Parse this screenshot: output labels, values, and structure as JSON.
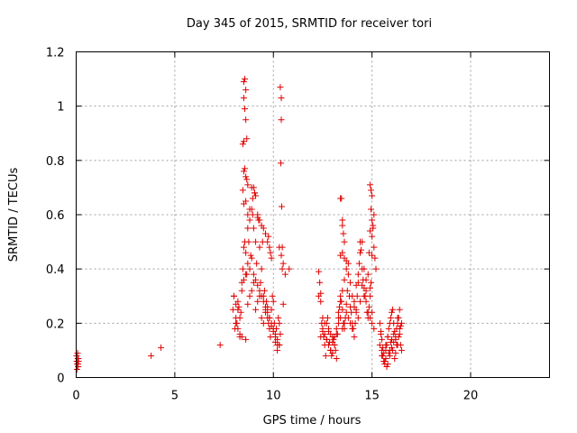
{
  "chart_data": {
    "type": "scatter",
    "title": "Day 345 of 2015, SRMTID for receiver tori",
    "xlabel": "GPS time / hours",
    "ylabel": "SRMTID / TECUs",
    "xlim": [
      0,
      24
    ],
    "ylim": [
      0,
      1.2
    ],
    "xticks": [
      0,
      5,
      10,
      15,
      20
    ],
    "xtick_labels": [
      "0",
      "5",
      "10",
      "15",
      "20"
    ],
    "yticks": [
      0,
      0.2,
      0.4,
      0.6,
      0.8,
      1,
      1.2
    ],
    "ytick_labels": [
      "0",
      "0.2",
      "0.4",
      "0.6",
      "0.8",
      "1",
      "1.2"
    ],
    "grid": true,
    "marker": "+",
    "color": "#e00000",
    "series": [
      {
        "name": "SRMTID",
        "x": [
          0.02,
          0.05,
          0.08,
          0.1,
          0.12,
          0.04,
          0.07,
          0.11,
          0.03,
          0.09,
          3.8,
          4.3,
          7.3,
          7.95,
          8.0,
          8.05,
          8.1,
          8.15,
          8.2,
          8.25,
          8.3,
          8.35,
          8.4,
          8.45,
          8.5,
          8.55,
          8.6,
          8.65,
          8.7,
          8.75,
          8.8,
          8.85,
          8.9,
          8.95,
          9.0,
          9.05,
          9.1,
          9.15,
          9.2,
          9.25,
          9.3,
          9.35,
          9.4,
          9.45,
          9.5,
          9.55,
          9.6,
          9.65,
          9.7,
          9.75,
          9.8,
          9.85,
          9.9,
          9.95,
          10.0,
          10.05,
          10.1,
          10.15,
          10.2,
          10.25,
          10.3,
          10.35,
          10.4,
          10.45,
          10.5,
          10.6,
          10.8,
          8.5,
          8.55,
          8.6,
          8.5,
          8.55,
          8.6,
          8.65,
          8.45,
          8.5,
          8.55,
          8.5,
          8.6,
          8.65,
          8.7,
          8.45,
          8.6,
          8.5,
          8.7,
          8.8,
          8.9,
          9.0,
          8.95,
          9.05,
          9.1,
          9.2,
          9.3,
          9.4,
          9.5,
          9.6,
          9.7,
          9.75,
          9.8,
          9.85,
          9.9,
          8.1,
          8.2,
          8.3,
          8.4,
          8.6,
          8.7,
          8.8,
          8.9,
          9.0,
          9.1,
          9.2,
          9.3,
          9.4,
          9.5,
          9.6,
          9.7,
          9.8,
          9.9,
          10.0,
          10.1,
          10.2,
          10.3,
          8.0,
          8.1,
          8.2,
          8.3,
          8.4,
          8.5,
          8.6,
          8.7,
          8.8,
          8.9,
          9.0,
          9.1,
          9.2,
          9.3,
          9.4,
          9.5,
          9.6,
          9.7,
          9.8,
          9.9,
          10.0,
          10.1,
          10.2,
          10.3,
          10.35,
          10.4,
          10.4,
          10.38,
          10.42,
          10.3,
          10.45,
          10.5,
          12.3,
          12.35,
          12.4,
          12.45,
          12.5,
          12.55,
          12.6,
          12.65,
          12.7,
          12.75,
          12.8,
          12.85,
          12.9,
          12.95,
          13.0,
          13.05,
          13.1,
          13.15,
          13.2,
          13.25,
          13.3,
          13.35,
          13.4,
          13.45,
          13.5,
          13.55,
          13.6,
          13.65,
          13.7,
          13.75,
          13.8,
          13.85,
          13.9,
          13.95,
          14.0,
          14.05,
          14.1,
          14.15,
          14.2,
          14.25,
          14.3,
          14.35,
          14.4,
          14.45,
          14.5,
          14.55,
          14.6,
          14.65,
          14.7,
          14.75,
          14.8,
          14.85,
          14.9,
          14.95,
          15.0,
          15.05,
          15.1,
          15.15,
          15.2,
          12.3,
          12.4,
          12.5,
          12.6,
          12.7,
          12.8,
          12.9,
          13.0,
          13.1,
          13.2,
          13.3,
          13.4,
          13.5,
          13.6,
          13.7,
          13.8,
          13.9,
          14.0,
          14.1,
          14.2,
          14.3,
          14.4,
          14.5,
          14.6,
          14.7,
          14.8,
          14.9,
          15.0,
          15.1,
          12.4,
          12.5,
          12.6,
          12.7,
          12.8,
          12.9,
          13.0,
          13.1,
          13.2,
          13.3,
          13.4,
          13.5,
          13.6,
          13.7,
          13.8,
          13.9,
          14.0,
          14.1,
          14.2,
          14.3,
          14.4,
          14.5,
          14.6,
          14.7,
          14.8,
          14.9,
          15.0,
          13.4,
          13.45,
          13.5,
          13.5,
          13.55,
          13.6,
          13.4,
          13.5,
          13.6,
          13.7,
          14.9,
          14.95,
          15.0,
          14.95,
          15.0,
          15.05,
          14.9,
          15.0,
          15.1,
          14.85,
          15.4,
          15.45,
          15.5,
          15.55,
          15.6,
          15.65,
          15.7,
          15.75,
          15.8,
          15.85,
          15.9,
          15.95,
          16.0,
          16.05,
          16.1,
          16.15,
          16.2,
          16.25,
          16.3,
          16.35,
          16.4,
          16.45,
          16.5,
          15.4,
          15.5,
          15.6,
          15.7,
          15.8,
          15.9,
          16.0,
          16.1,
          16.2,
          16.3,
          16.4,
          16.5,
          15.45,
          15.55,
          15.65,
          15.75,
          15.85,
          15.95,
          16.05,
          16.15,
          16.25,
          16.35,
          16.45,
          15.5,
          15.6,
          15.7,
          15.8,
          15.9,
          16.0,
          16.1,
          16.2,
          16.3,
          16.4
        ],
        "y": [
          0.08,
          0.05,
          0.07,
          0.04,
          0.06,
          0.03,
          0.09,
          0.07,
          0.06,
          0.05,
          0.08,
          0.11,
          0.12,
          0.25,
          0.3,
          0.18,
          0.22,
          0.2,
          0.28,
          0.26,
          0.15,
          0.24,
          0.35,
          0.4,
          0.48,
          0.5,
          0.46,
          0.38,
          0.55,
          0.5,
          0.62,
          0.45,
          0.7,
          0.6,
          0.55,
          0.68,
          0.5,
          0.42,
          0.6,
          0.58,
          0.48,
          0.35,
          0.4,
          0.5,
          0.3,
          0.32,
          0.25,
          0.28,
          0.22,
          0.2,
          0.18,
          0.15,
          0.25,
          0.3,
          0.28,
          0.2,
          0.15,
          0.18,
          0.12,
          0.22,
          0.2,
          0.16,
          0.45,
          0.48,
          0.42,
          0.38,
          0.4,
          1.09,
          1.1,
          1.06,
          1.03,
          0.99,
          0.95,
          0.88,
          0.86,
          0.87,
          0.77,
          0.76,
          0.74,
          0.73,
          0.71,
          0.69,
          0.65,
          0.64,
          0.6,
          0.58,
          0.62,
          0.7,
          0.66,
          0.68,
          0.67,
          0.59,
          0.58,
          0.56,
          0.55,
          0.53,
          0.5,
          0.52,
          0.48,
          0.46,
          0.44,
          0.2,
          0.18,
          0.16,
          0.15,
          0.14,
          0.27,
          0.3,
          0.32,
          0.35,
          0.25,
          0.28,
          0.3,
          0.22,
          0.2,
          0.24,
          0.26,
          0.22,
          0.19,
          0.17,
          0.13,
          0.1,
          0.12,
          0.3,
          0.27,
          0.25,
          0.22,
          0.32,
          0.36,
          0.38,
          0.42,
          0.4,
          0.44,
          0.38,
          0.36,
          0.34,
          0.32,
          0.3,
          0.28,
          0.26,
          0.24,
          0.22,
          0.2,
          0.18,
          0.16,
          0.14,
          0.12,
          1.07,
          1.03,
          0.95,
          0.79,
          0.63,
          0.48,
          0.4,
          0.27,
          0.39,
          0.35,
          0.31,
          0.2,
          0.18,
          0.15,
          0.12,
          0.08,
          0.2,
          0.22,
          0.17,
          0.13,
          0.1,
          0.08,
          0.15,
          0.14,
          0.12,
          0.1,
          0.07,
          0.16,
          0.22,
          0.26,
          0.3,
          0.28,
          0.25,
          0.2,
          0.18,
          0.22,
          0.27,
          0.32,
          0.38,
          0.3,
          0.26,
          0.24,
          0.2,
          0.18,
          0.15,
          0.2,
          0.25,
          0.3,
          0.35,
          0.42,
          0.5,
          0.47,
          0.4,
          0.36,
          0.33,
          0.3,
          0.28,
          0.24,
          0.22,
          0.26,
          0.3,
          0.35,
          0.45,
          0.55,
          0.6,
          0.44,
          0.4,
          0.3,
          0.28,
          0.22,
          0.16,
          0.14,
          0.12,
          0.1,
          0.09,
          0.12,
          0.18,
          0.24,
          0.28,
          0.32,
          0.36,
          0.4,
          0.42,
          0.35,
          0.3,
          0.28,
          0.34,
          0.38,
          0.46,
          0.5,
          0.4,
          0.32,
          0.24,
          0.22,
          0.2,
          0.18,
          0.15,
          0.17,
          0.2,
          0.14,
          0.18,
          0.16,
          0.13,
          0.15,
          0.16,
          0.2,
          0.22,
          0.18,
          0.2,
          0.24,
          0.22,
          0.2,
          0.18,
          0.26,
          0.24,
          0.22,
          0.28,
          0.34,
          0.3,
          0.36,
          0.38,
          0.33,
          0.24,
          0.66,
          0.66,
          0.58,
          0.56,
          0.53,
          0.5,
          0.45,
          0.46,
          0.44,
          0.43,
          0.71,
          0.69,
          0.67,
          0.62,
          0.58,
          0.56,
          0.54,
          0.52,
          0.48,
          0.46,
          0.2,
          0.16,
          0.1,
          0.08,
          0.06,
          0.05,
          0.1,
          0.12,
          0.15,
          0.18,
          0.2,
          0.22,
          0.24,
          0.25,
          0.2,
          0.17,
          0.14,
          0.18,
          0.2,
          0.22,
          0.16,
          0.12,
          0.1,
          0.12,
          0.14,
          0.09,
          0.07,
          0.05,
          0.08,
          0.11,
          0.13,
          0.15,
          0.12,
          0.18,
          0.2,
          0.17,
          0.11,
          0.06,
          0.04,
          0.09,
          0.13,
          0.1,
          0.07,
          0.12,
          0.15,
          0.19,
          0.08,
          0.06,
          0.12,
          0.15,
          0.1,
          0.14,
          0.16,
          0.09,
          0.22,
          0.25
        ]
      }
    ]
  }
}
